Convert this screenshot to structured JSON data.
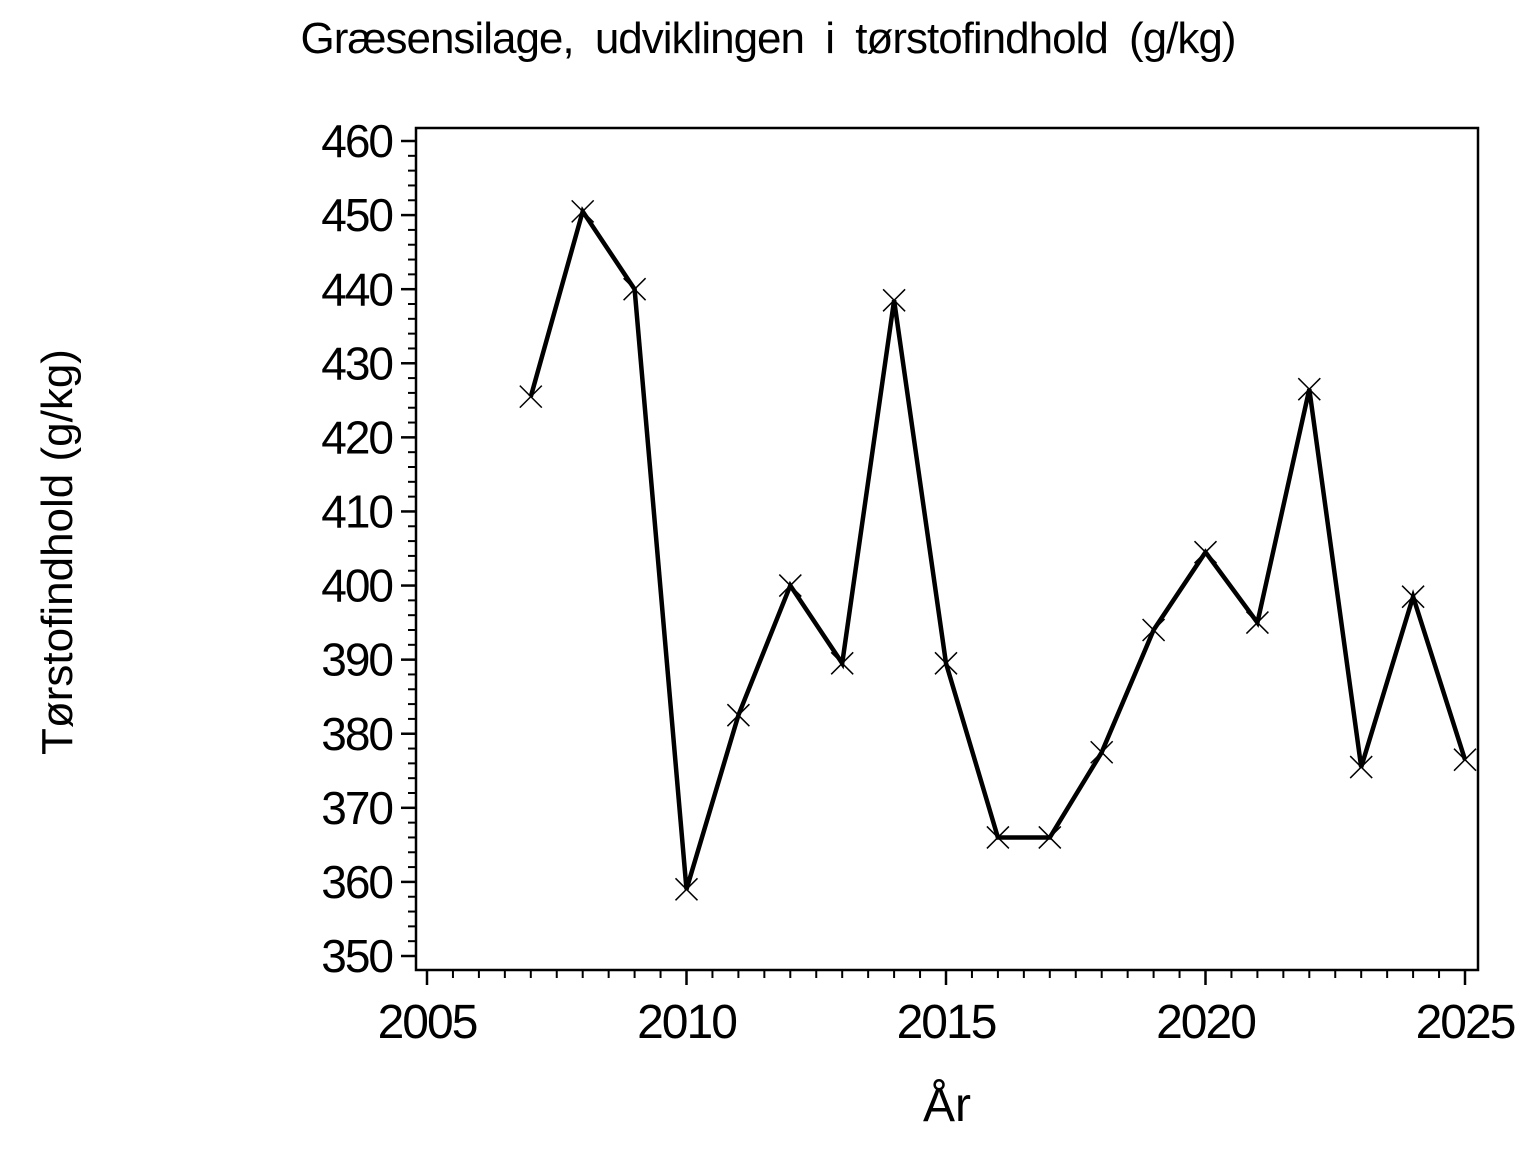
{
  "chart_data": {
    "type": "line",
    "title": "Græsensilage, udviklingen i tørstofindhold (g/kg)",
    "xlabel": "År",
    "ylabel": "Tørstofindhold (g/kg)",
    "x": [
      2007,
      2008,
      2009,
      2010,
      2011,
      2012,
      2013,
      2014,
      2015,
      2016,
      2017,
      2018,
      2019,
      2020,
      2021,
      2022,
      2023,
      2024,
      2025
    ],
    "values": [
      425.5,
      450.5,
      440,
      359,
      382.5,
      400,
      389.5,
      438.5,
      389.5,
      366,
      366,
      377.5,
      394,
      404.5,
      395,
      426.5,
      375.5,
      398.5,
      376.5
    ],
    "x_axis": {
      "min": 2004.8,
      "max": 2025.3,
      "major_ticks": [
        2005,
        2010,
        2015,
        2020,
        2025
      ],
      "minor_tick_step": 0.5
    },
    "y_axis": {
      "min": 348,
      "max": 461.5,
      "major_ticks": [
        350,
        360,
        370,
        380,
        390,
        400,
        410,
        420,
        430,
        440,
        450,
        460
      ],
      "minor_tick_step": 2
    },
    "grid": false,
    "legend": null,
    "marker": "x",
    "line_color": "#000000",
    "background_color": "#ffffff",
    "text_color": "#000000"
  }
}
